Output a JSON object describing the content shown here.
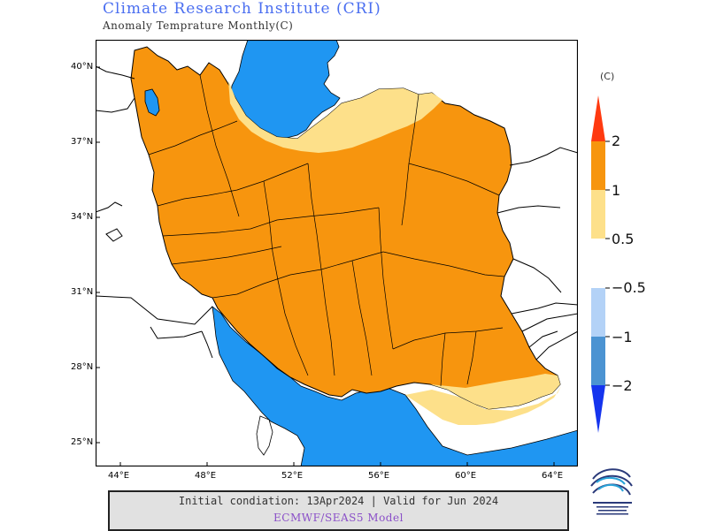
{
  "header": {
    "title": "Climate Research Institute (CRI)",
    "subtitle": "Anomaly Temprature Monthly(C)"
  },
  "axes": {
    "lat_ticks": [
      "40°N",
      "37°N",
      "34°N",
      "31°N",
      "28°N",
      "25°N"
    ],
    "lon_ticks": [
      "44°E",
      "48°E",
      "52°E",
      "56°E",
      "60°E",
      "64°E"
    ]
  },
  "legend": {
    "unit": "(C)",
    "warm_labels": [
      "2",
      "1",
      "0.5"
    ],
    "cold_labels": [
      "−0.5",
      "−1",
      "−2"
    ],
    "colors": {
      "above_2": "#ff3a10",
      "1_to_2": "#f7950e",
      "0.5_to_1": "#fde08a",
      "neg_0.5_to_neg_1": "#b3d2f7",
      "neg_1_to_neg_2": "#4b93d2",
      "below_neg_2": "#1534ee"
    }
  },
  "map": {
    "water_color": "#1f96f2",
    "background_color": "#ffffff"
  },
  "footer": {
    "line1": "Initial condiation: 13Apr2024 | Valid for Jun 2024",
    "line2": "ECMWF/SEAS5 Model"
  },
  "logo": {
    "name": "cri-logo"
  }
}
